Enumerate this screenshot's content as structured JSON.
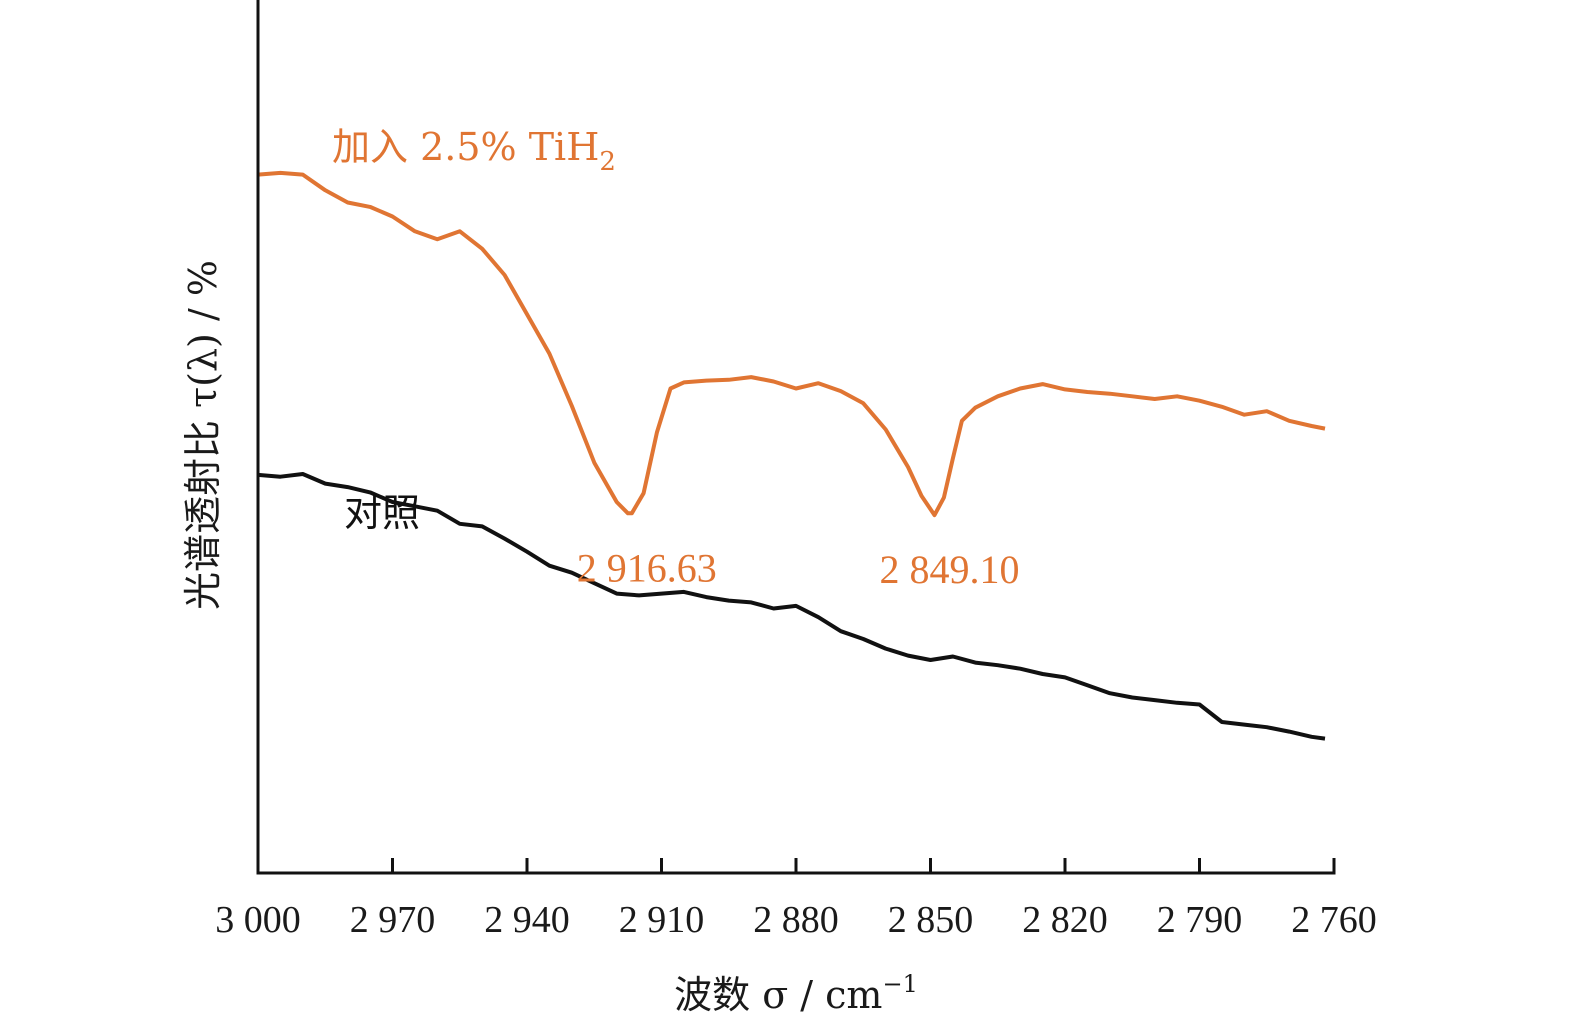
{
  "chart_data": {
    "type": "line",
    "xlabel": "波数 σ / cm",
    "xlabel_sup": "−1",
    "ylabel": "光谱透射比 τ(λ) / %",
    "xlim": [
      3000,
      2760
    ],
    "x_reversed": true,
    "y_tick_labels": false,
    "grid": false,
    "x_ticks": [
      3000,
      2970,
      2940,
      2910,
      2880,
      2850,
      2820,
      2790,
      2760
    ],
    "x_tick_labels": [
      "3 000",
      "2 970",
      "2 940",
      "2 910",
      "2 880",
      "2 850",
      "2 820",
      "2 790",
      "2 760"
    ],
    "ylim": [
      0,
      100
    ],
    "series": [
      {
        "name": "加入 2.5% TiH",
        "name_sub": "2",
        "color": "#e07533",
        "x": [
          3000,
          2995,
          2990,
          2985,
          2980,
          2975,
          2970,
          2965,
          2960,
          2955,
          2950,
          2945,
          2940,
          2935,
          2930,
          2925,
          2920,
          2917.5,
          2916.63,
          2914,
          2911,
          2908,
          2905,
          2900,
          2895,
          2890,
          2885,
          2880,
          2875,
          2870,
          2865,
          2860,
          2855,
          2852,
          2849.1,
          2847,
          2845,
          2843,
          2840,
          2835,
          2830,
          2825,
          2820,
          2815,
          2810,
          2805,
          2800,
          2795,
          2790,
          2785,
          2780,
          2775,
          2770,
          2765,
          2762
        ],
        "y": [
          80.0,
          80.2,
          80.0,
          78.2,
          76.8,
          76.3,
          75.2,
          73.5,
          72.6,
          73.5,
          71.5,
          68.5,
          64.0,
          59.5,
          53.5,
          47.0,
          42.5,
          41.2,
          41.2,
          43.5,
          50.5,
          55.5,
          56.2,
          56.4,
          56.5,
          56.8,
          56.3,
          55.5,
          56.1,
          55.2,
          53.8,
          50.8,
          46.5,
          43.2,
          41.0,
          43.0,
          47.5,
          51.8,
          53.3,
          54.6,
          55.5,
          56.0,
          55.4,
          55.1,
          54.9,
          54.6,
          54.3,
          54.6,
          54.1,
          53.4,
          52.5,
          52.9,
          51.8,
          51.2,
          50.9
        ]
      },
      {
        "name": "对照",
        "color": "#111111",
        "x": [
          3000,
          2995,
          2990,
          2985,
          2980,
          2975,
          2970,
          2965,
          2960,
          2955,
          2950,
          2945,
          2940,
          2935,
          2930,
          2925,
          2920,
          2915,
          2910,
          2905,
          2900,
          2895,
          2890,
          2885,
          2880,
          2875,
          2870,
          2865,
          2860,
          2855,
          2850,
          2845,
          2840,
          2835,
          2830,
          2825,
          2820,
          2815,
          2810,
          2805,
          2800,
          2795,
          2790,
          2785,
          2780,
          2775,
          2770,
          2765,
          2762
        ],
        "y": [
          45.6,
          45.4,
          45.7,
          44.6,
          44.2,
          43.6,
          42.5,
          42.0,
          41.5,
          40.0,
          39.7,
          38.3,
          36.8,
          35.2,
          34.4,
          33.2,
          32.0,
          31.8,
          32.0,
          32.2,
          31.6,
          31.2,
          31.0,
          30.3,
          30.6,
          29.3,
          27.7,
          26.8,
          25.7,
          24.9,
          24.4,
          24.8,
          24.1,
          23.8,
          23.4,
          22.8,
          22.4,
          21.5,
          20.6,
          20.1,
          19.8,
          19.5,
          19.3,
          17.3,
          17.0,
          16.7,
          16.2,
          15.6,
          15.4
        ]
      }
    ],
    "annotations": [
      {
        "text": "2 916.63",
        "x": 2916.63,
        "color": "#e07533"
      },
      {
        "text": "2 849.10",
        "x": 2849.1,
        "color": "#e07533"
      }
    ]
  }
}
